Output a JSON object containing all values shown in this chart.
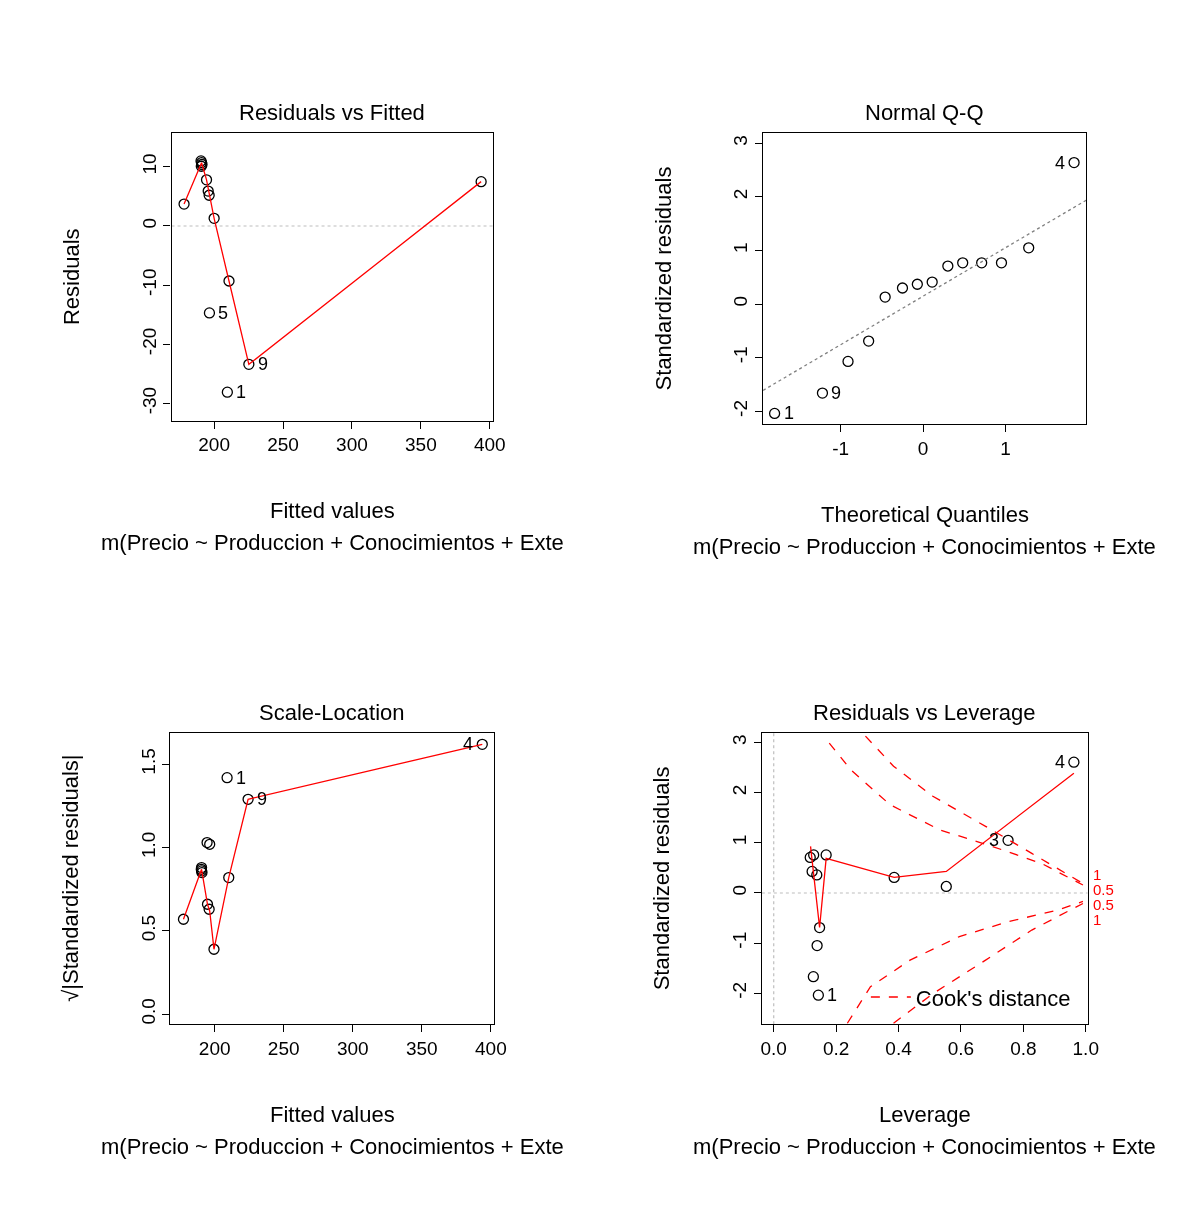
{
  "chart_data": [
    {
      "type": "scatter",
      "title": "Residuals vs Fitted",
      "xlabel": "Fitted values",
      "ylabel": "Residuals",
      "grid": false,
      "xlim": [
        169.1,
        402
      ],
      "ylim": [
        -32.9,
        15.8
      ],
      "xticks": [
        200,
        250,
        300,
        350,
        400
      ],
      "yticks": [
        -30,
        -20,
        -10,
        0,
        10
      ],
      "ref_lines": [
        {
          "axis": "y",
          "value": 0,
          "color": "#bebebe",
          "line_style": "dotted"
        }
      ],
      "series": [
        {
          "marker": "circle",
          "color": "#000000",
          "x": [
            178.2,
            190.5,
            190.9,
            191.2,
            190.7,
            194.5,
            195.7,
            196.4,
            200,
            210.8,
            196.6,
            225.2,
            209.6,
            393.7
          ],
          "values": [
            3.7,
            11.0,
            10.7,
            10.4,
            10.1,
            7.8,
            5.9,
            5.2,
            1.3,
            -9.3,
            -14.7,
            -23.4,
            -28.1,
            7.5
          ]
        },
        {
          "type": "line",
          "color": "#ff0000",
          "line_style": "solid",
          "x": [
            178.2,
            190.9,
            194.5,
            200,
            210.8,
            225.2,
            393.7
          ],
          "values": [
            3.7,
            10.7,
            7.8,
            1.3,
            -9.3,
            -23.4,
            7.5
          ]
        }
      ],
      "annotations": [
        "m(Precio ~ Produccion + Conocimientos + Exte",
        {
          "text": "5",
          "x": 196.6,
          "y": -14.7
        },
        {
          "text": "9",
          "x": 225.2,
          "y": -23.4
        },
        {
          "text": "1",
          "x": 209.6,
          "y": -28.1
        }
      ]
    },
    {
      "type": "scatter",
      "title": "Normal Q-Q",
      "xlabel": "Theoretical Quantiles",
      "ylabel": "Standardized residuals",
      "grid": false,
      "xlim": [
        -1.94,
        1.98
      ],
      "ylim": [
        -2.24,
        3.2
      ],
      "xticks": [
        -1,
        0,
        1
      ],
      "yticks": [
        -2,
        -1,
        0,
        1,
        2,
        3
      ],
      "series": [
        {
          "marker": "circle",
          "color": "#000000",
          "x": [
            -1.8,
            -1.22,
            -0.91,
            -0.66,
            -0.46,
            -0.25,
            -0.07,
            0.11,
            0.3,
            0.48,
            0.71,
            0.95,
            1.28,
            1.83
          ],
          "values": [
            -2.04,
            -1.66,
            -1.07,
            -0.69,
            0.13,
            0.3,
            0.37,
            0.41,
            0.71,
            0.77,
            0.77,
            0.77,
            1.05,
            2.64
          ]
        },
        {
          "type": "line",
          "color": "#808080",
          "line_style": "dotted",
          "x": [
            -1.94,
            1.98
          ],
          "values": [
            -1.61,
            1.94
          ]
        }
      ],
      "annotations": [
        "m(Precio ~ Produccion + Conocimientos + Exte",
        {
          "text": "1",
          "x": -1.8,
          "y": -2.04
        },
        {
          "text": "9",
          "x": -1.22,
          "y": -1.66
        },
        {
          "text": "4",
          "x": 1.83,
          "y": 2.64
        }
      ]
    },
    {
      "type": "scatter",
      "title": "Scale-Location",
      "xlabel": "Fitted values",
      "ylabel": "√|Standardized residuals|",
      "grid": false,
      "xlim": [
        167.9,
        402.1
      ],
      "ylim": [
        -0.06,
        1.69
      ],
      "xticks": [
        200,
        250,
        300,
        350,
        400
      ],
      "yticks": [
        {
          "value": 0,
          "label": "0.0"
        },
        {
          "value": 0.5,
          "label": "0.5"
        },
        {
          "value": 1,
          "label": "1.0"
        },
        {
          "value": 1.5,
          "label": "1.5"
        }
      ],
      "series": [
        {
          "marker": "circle",
          "color": "#000000",
          "x": [
            177.4,
            190.5,
            190.5,
            190.3,
            190.8,
            194.5,
            196.4,
            194.8,
            196.0,
            199.5,
            210.2,
            209.0,
            224.2,
            393.8
          ],
          "values": [
            0.57,
            0.88,
            0.86,
            0.87,
            0.85,
            1.03,
            1.02,
            0.66,
            0.63,
            0.39,
            0.82,
            1.42,
            1.29,
            1.62
          ]
        },
        {
          "type": "line",
          "color": "#ff0000",
          "line_style": "solid",
          "x": [
            177.4,
            190.5,
            194.8,
            196.4,
            199.5,
            210.2,
            224.2,
            393.8
          ],
          "values": [
            0.57,
            0.87,
            0.66,
            0.62,
            0.39,
            0.82,
            1.29,
            1.62
          ]
        }
      ],
      "annotations": [
        "m(Precio ~ Produccion + Conocimientos + Exte",
        {
          "text": "1",
          "x": 209.0,
          "y": 1.42
        },
        {
          "text": "9",
          "x": 224.2,
          "y": 1.29
        },
        {
          "text": "4",
          "x": 393.8,
          "y": 1.62
        }
      ]
    },
    {
      "type": "scatter",
      "title": "Residuals vs Leverage",
      "xlabel": "Leverage",
      "ylabel": "Standardized residuals",
      "grid": false,
      "legend": "bottom right",
      "xlim": [
        -0.038,
        1.006
      ],
      "ylim": [
        -2.62,
        3.2
      ],
      "xticks": [
        {
          "value": 0,
          "label": "0.0"
        },
        {
          "value": 0.2,
          "label": "0.2"
        },
        {
          "value": 0.4,
          "label": "0.4"
        },
        {
          "value": 0.6,
          "label": "0.6"
        },
        {
          "value": 0.8,
          "label": "0.8"
        },
        {
          "value": 1,
          "label": "1.0"
        }
      ],
      "yticks": [
        -2,
        -1,
        0,
        1,
        2,
        3
      ],
      "ref_lines": [
        {
          "axis": "x",
          "value": 0,
          "color": "#bebebe",
          "line_style": "dotted"
        },
        {
          "axis": "y",
          "value": 0,
          "color": "#bebebe",
          "line_style": "dotted"
        }
      ],
      "series": [
        {
          "marker": "circle",
          "color": "#000000",
          "x": [
            0.117,
            0.128,
            0.168,
            0.123,
            0.138,
            0.386,
            0.553,
            0.751,
            0.962,
            0.147,
            0.139,
            0.127,
            0.143
          ],
          "values": [
            0.71,
            0.76,
            0.76,
            0.43,
            0.36,
            0.31,
            0.13,
            1.05,
            2.61,
            -0.69,
            -1.05,
            -1.67,
            -2.04
          ]
        },
        {
          "type": "line",
          "color": "#ff0000",
          "line_style": "solid",
          "x": [
            0.118,
            0.147,
            0.168,
            0.386,
            0.553,
            0.962
          ],
          "values": [
            0.93,
            -0.69,
            0.69,
            0.31,
            0.43,
            2.39
          ]
        },
        {
          "type": "line",
          "name": "Cook's distance",
          "color": "#ff0000",
          "line_style": "dashed",
          "x": [
            0.178,
            0.247,
            0.373,
            0.532,
            0.7,
            0.858,
            0.991
          ],
          "values": [
            2.99,
            2.46,
            1.76,
            1.26,
            0.93,
            0.59,
            0.16
          ]
        },
        {
          "type": "line",
          "color": "#ff0000",
          "line_style": "dashed",
          "x": [
            0.294,
            0.384,
            0.51,
            0.679,
            0.827,
            0.991
          ],
          "values": [
            3.13,
            2.53,
            1.93,
            1.33,
            0.79,
            0.19
          ]
        },
        {
          "type": "line",
          "color": "#ff0000",
          "line_style": "dashed",
          "x": [
            0.236,
            0.31,
            0.437,
            0.595,
            0.753,
            0.911,
            0.991
          ],
          "values": [
            -2.6,
            -1.87,
            -1.34,
            -0.87,
            -0.57,
            -0.34,
            -0.17
          ]
        },
        {
          "type": "line",
          "color": "#ff0000",
          "line_style": "dashed",
          "x": [
            0.384,
            0.51,
            0.679,
            0.827,
            0.991
          ],
          "values": [
            -2.6,
            -2.01,
            -1.34,
            -0.74,
            -0.21
          ]
        }
      ],
      "annotations": [
        "m(Precio ~ Produccion + Conocimientos + Exte",
        {
          "text": "3",
          "x": 0.751,
          "y": 1.05
        },
        {
          "text": "4",
          "x": 0.962,
          "y": 2.61
        },
        {
          "text": "1",
          "x": 0.143,
          "y": -2.04
        },
        "1",
        "0.5",
        "0.5",
        "1"
      ]
    }
  ]
}
